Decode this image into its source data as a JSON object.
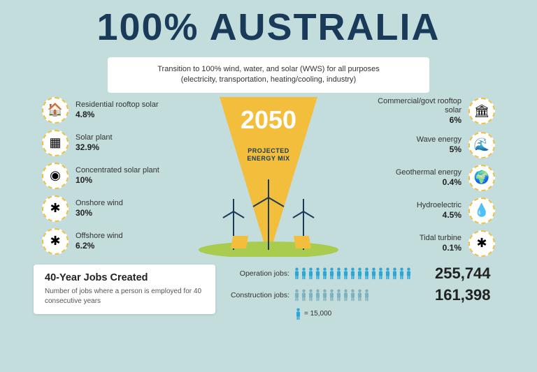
{
  "title": "100% AUSTRALIA",
  "subtitle_line1": "Transition to 100% wind, water, and solar (WWS) for all purposes",
  "subtitle_line2": "(electricity, transportation, heating/cooling, industry)",
  "center": {
    "year": "2050",
    "label_line1": "PROJECTED",
    "label_line2": "ENERGY MIX",
    "triangle_color": "#f3be3c",
    "ground_color": "#a9cc4f"
  },
  "left": [
    {
      "name": "Residential rooftop solar",
      "pct": "4.8%",
      "icon": "🏠"
    },
    {
      "name": "Solar plant",
      "pct": "32.9%",
      "icon": "▦"
    },
    {
      "name": "Concentrated solar plant",
      "pct": "10%",
      "icon": "◉"
    },
    {
      "name": "Onshore wind",
      "pct": "30%",
      "icon": "✱"
    },
    {
      "name": "Offshore wind",
      "pct": "6.2%",
      "icon": "✱"
    }
  ],
  "right": [
    {
      "name": "Commercial/govt rooftop solar",
      "pct": "6%",
      "icon": "🏛"
    },
    {
      "name": "Wave energy",
      "pct": "5%",
      "icon": "🌊"
    },
    {
      "name": "Geothermal energy",
      "pct": "0.4%",
      "icon": "🌍"
    },
    {
      "name": "Hydroelectric",
      "pct": "4.5%",
      "icon": "💧"
    },
    {
      "name": "Tidal turbine",
      "pct": "0.1%",
      "icon": "✱"
    }
  ],
  "jobs": {
    "card_title": "40-Year Jobs Created",
    "card_desc": "Number of jobs where a person is employed for 40 consecutive years",
    "rows": [
      {
        "label": "Operation jobs:",
        "people": 17,
        "color": "#2ba7d6",
        "count": "255,744"
      },
      {
        "label": "Construction jobs:",
        "people": 11,
        "color": "#7fb2bf",
        "count": "161,398"
      }
    ],
    "legend_icon_color": "#2ba7d6",
    "legend_text": "= 15,000"
  },
  "colors": {
    "background": "#c3dcdc",
    "title": "#1a3a5a",
    "icon_border": "#f3be3c"
  }
}
